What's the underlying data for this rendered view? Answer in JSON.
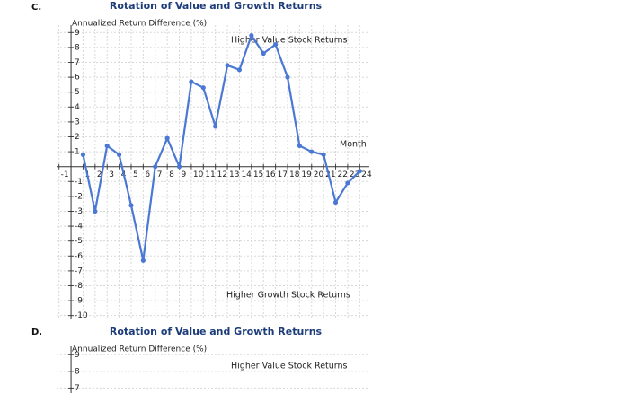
{
  "chart_data": [
    {
      "type": "line",
      "label": "C.",
      "title": "Rotation of Value and Growth Returns",
      "y_label": "Annualized Return Difference (%)",
      "annotations": [
        "Higher Value Stock Returns",
        "Month",
        "Higher Growth Stock Returns"
      ],
      "x": [
        1,
        2,
        3,
        4,
        5,
        6,
        7,
        8,
        9,
        10,
        11,
        12,
        13,
        14,
        15,
        16,
        17,
        18,
        19,
        20,
        21,
        22,
        23,
        24
      ],
      "series": [
        {
          "color": "#4a78d4",
          "values": [
            0.8,
            -3,
            1.4,
            0.8,
            -2.6,
            -6.3,
            0,
            1.9,
            0,
            5.7,
            5.3,
            2.7,
            6.8,
            6.5,
            8.8,
            7.6,
            8.2,
            6,
            1.4,
            1,
            0.8,
            -2.4,
            -1.1,
            -0.3
          ]
        }
      ],
      "xlim": [
        -1.2,
        24.8
      ],
      "ylim": [
        -10.2,
        9.5
      ],
      "xticks": [
        -1,
        1,
        2,
        3,
        4,
        5,
        6,
        7,
        8,
        9,
        10,
        11,
        12,
        13,
        14,
        15,
        16,
        17,
        18,
        19,
        20,
        21,
        22,
        23,
        24
      ],
      "yticks": [
        9,
        8,
        7,
        6,
        5,
        4,
        3,
        2,
        1,
        -1,
        -2,
        -3,
        -4,
        -5,
        -6,
        -7,
        -8,
        -9,
        -10
      ],
      "grid": true
    },
    {
      "type": "line",
      "label": "D.",
      "title": "Rotation of Value and Growth Returns",
      "y_label": "Annualized Return Difference (%)",
      "annotations": [
        "Higher Value Stock Returns"
      ],
      "xlim": [
        -1.2,
        24.8
      ],
      "ylim": [
        6.7,
        9.5
      ],
      "yticks": [
        9,
        8,
        7
      ],
      "grid": true
    }
  ]
}
